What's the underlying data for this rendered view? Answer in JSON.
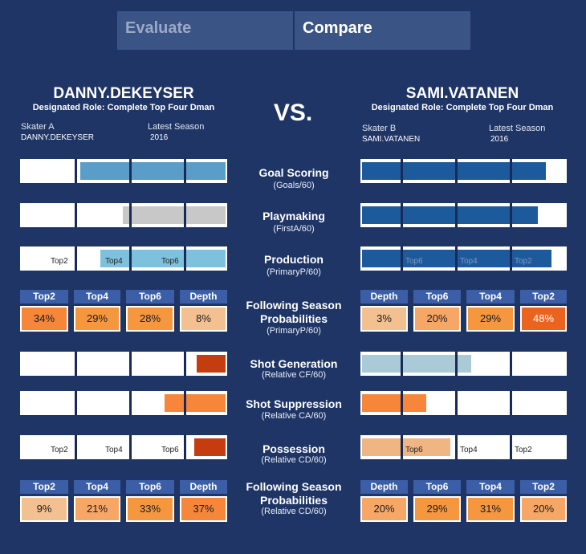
{
  "tabs": {
    "evaluate": "Evaluate",
    "compare": "Compare"
  },
  "vs_label": "VS.",
  "player_a": {
    "name": "DANNY.DEKEYSER",
    "role": "Designated Role: Complete Top Four Dman",
    "skater_label": "Skater A",
    "skater_value": "DANNY.DEKEYSER",
    "season_label": "Latest Season",
    "season_value": "2016"
  },
  "player_b": {
    "name": "SAMI.VATANEN",
    "role": "Designated Role: Complete Top Four Dman",
    "skater_label": "Skater B",
    "skater_value": "SAMI.VATANEN",
    "season_label": "Latest Season",
    "season_value": "2016"
  },
  "metrics": {
    "goal_scoring": {
      "label": "Goal Scoring",
      "sub": "(Goals/60)"
    },
    "playmaking": {
      "label": "Playmaking",
      "sub": "(FirstA/60)"
    },
    "production": {
      "label": "Production",
      "sub": "(PrimaryP/60)"
    },
    "prob1": {
      "label": "Following Season Probabilities",
      "sub": "(PrimaryP/60)"
    },
    "shot_gen": {
      "label": "Shot Generation",
      "sub": "(Relative CF/60)"
    },
    "shot_sup": {
      "label": "Shot Suppression",
      "sub": "(Relative CA/60)"
    },
    "possession": {
      "label": "Possession",
      "sub": "(Relative CD/60)"
    },
    "prob2": {
      "label": "Following Season Probabilities",
      "sub": "(Relative CD/60)"
    }
  },
  "tier_labels": {
    "top2": "Top2",
    "top4": "Top4",
    "top6": "Top6",
    "depth": "Depth"
  },
  "prob1": {
    "a": [
      "34%",
      "29%",
      "28%",
      "8%"
    ],
    "b": [
      "3%",
      "20%",
      "29%",
      "48%"
    ]
  },
  "prob2": {
    "a": [
      "9%",
      "21%",
      "33%",
      "37%"
    ],
    "b": [
      "20%",
      "29%",
      "31%",
      "20%"
    ]
  },
  "colors": {
    "background": "#1f3566",
    "goal_a": "#5a9dc8",
    "goal_b": "#1d5a9c",
    "playmaking_a": "#c8c8c8",
    "production_a": "#7ec1de",
    "shot_gen_a": "#c53c10",
    "shot_gen_b": "#a9cad6",
    "shot_sup": "#f5863a",
    "possession_a": "#c53c10",
    "possession_b": "#efb583"
  }
}
